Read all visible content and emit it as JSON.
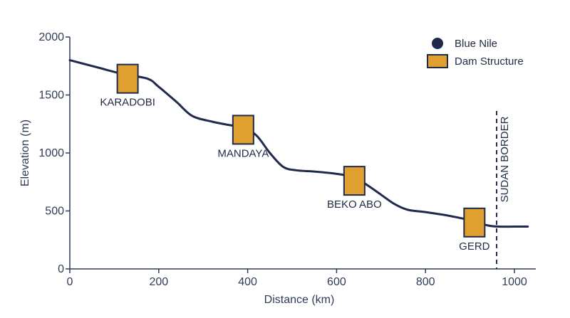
{
  "chart_data": {
    "type": "line",
    "title": "",
    "xlabel": "Distance (km)",
    "ylabel": "Elevation (m)",
    "xlim": [
      0,
      1030
    ],
    "ylim": [
      0,
      2000
    ],
    "x_ticks": [
      "0",
      "200",
      "400",
      "600",
      "800",
      "1000"
    ],
    "y_ticks": [
      "0",
      "500",
      "1000",
      "1500",
      "2000"
    ],
    "grid": false,
    "legend_position": "top-right",
    "colors": {
      "river": "#1f2a4d",
      "dam": "#e0a030",
      "dam_border": "#1f2a4d",
      "axis": "#2f3b57"
    },
    "series": [
      {
        "name": "Blue Nile",
        "x": [
          0,
          60,
          120,
          175,
          200,
          240,
          275,
          320,
          360,
          390,
          420,
          450,
          480,
          510,
          550,
          600,
          640,
          670,
          700,
          730,
          760,
          800,
          850,
          900,
          940,
          965,
          1000,
          1030
        ],
        "y": [
          1800,
          1740,
          1680,
          1640,
          1570,
          1440,
          1320,
          1270,
          1240,
          1220,
          1150,
          1000,
          880,
          850,
          840,
          820,
          790,
          720,
          640,
          560,
          510,
          490,
          460,
          420,
          375,
          365,
          365,
          365
        ]
      }
    ],
    "dams": [
      {
        "name": "KARADOBI",
        "x": 130,
        "y": 1640
      },
      {
        "name": "MANDAYA",
        "x": 390,
        "y": 1200
      },
      {
        "name": "BEKO ABO",
        "x": 640,
        "y": 760
      },
      {
        "name": "GERD",
        "x": 910,
        "y": 400
      }
    ],
    "legend": [
      {
        "name": "Blue Nile",
        "marker": "circle"
      },
      {
        "name": "Dam Structure",
        "marker": "square"
      }
    ],
    "annotations": [
      {
        "text": "SUDAN BORDER",
        "x": 960,
        "style": "dashed-vertical"
      }
    ]
  }
}
